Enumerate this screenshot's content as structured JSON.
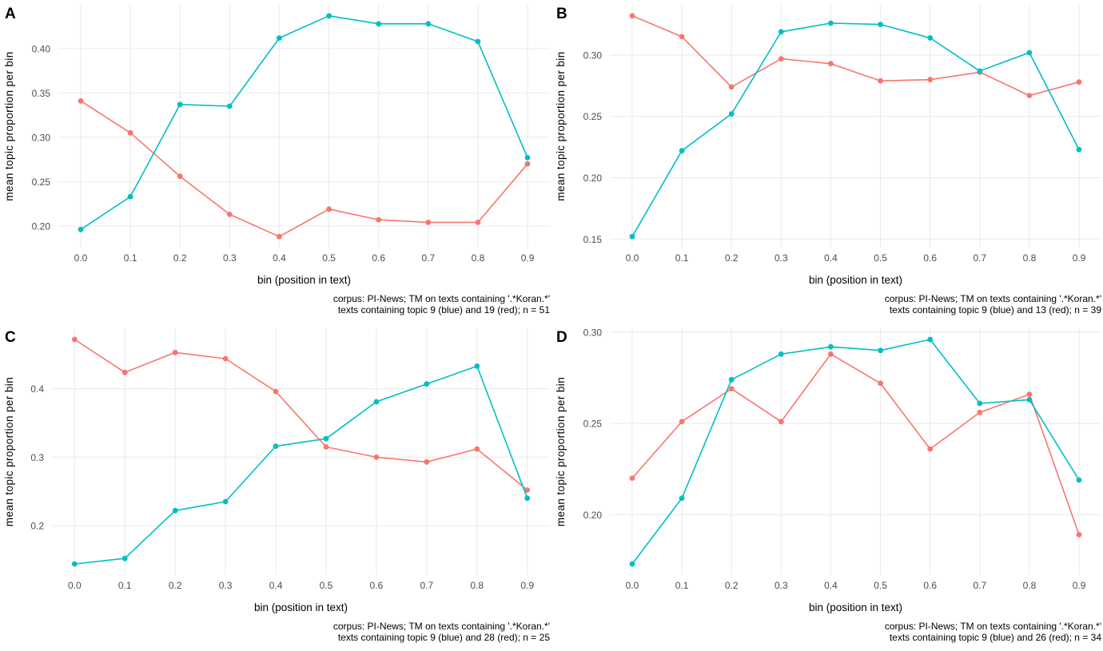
{
  "figure": {
    "background": "#FFFFFF",
    "grid_color": "#EBEBEB",
    "tick_label_color": "#4D4D4D",
    "text_color": "#000000",
    "series_colors": {
      "blue": "#00BFC4",
      "red": "#F8766D"
    }
  },
  "chart_data": [
    {
      "type": "line",
      "panel": "A",
      "xlabel": "bin (position in text)",
      "ylabel": "mean topic proportion per bin",
      "x": [
        0.0,
        0.1,
        0.2,
        0.3,
        0.4,
        0.5,
        0.6,
        0.7,
        0.8,
        0.9
      ],
      "xtick_labels": [
        "0.0",
        "0.1",
        "0.2",
        "0.3",
        "0.4",
        "0.5",
        "0.6",
        "0.7",
        "0.8",
        "0.9"
      ],
      "yticks": [
        0.2,
        0.25,
        0.3,
        0.35,
        0.4
      ],
      "ytick_labels": [
        "0.20",
        "0.25",
        "0.30",
        "0.35",
        "0.40"
      ],
      "grid": "major",
      "legend": "none",
      "series": [
        {
          "name": "topic 9 (blue)",
          "color": "#00BFC4",
          "values": [
            0.196,
            0.233,
            0.337,
            0.335,
            0.412,
            0.437,
            0.428,
            0.428,
            0.408,
            0.277
          ]
        },
        {
          "name": "topic 19 (red)",
          "color": "#F8766D",
          "values": [
            0.341,
            0.305,
            0.256,
            0.213,
            0.188,
            0.219,
            0.207,
            0.204,
            0.204,
            0.27
          ]
        }
      ],
      "caption_line1": "corpus: PI-News; TM on texts containing '.*Koran.*'",
      "caption_line2": "texts containing topic 9 (blue) and 19 (red); n = 51"
    },
    {
      "type": "line",
      "panel": "B",
      "xlabel": "bin (position in text)",
      "ylabel": "mean topic proportion per bin",
      "x": [
        0.0,
        0.1,
        0.2,
        0.3,
        0.4,
        0.5,
        0.6,
        0.7,
        0.8,
        0.9
      ],
      "xtick_labels": [
        "0.0",
        "0.1",
        "0.2",
        "0.3",
        "0.4",
        "0.5",
        "0.6",
        "0.7",
        "0.8",
        "0.9"
      ],
      "yticks": [
        0.15,
        0.2,
        0.25,
        0.3
      ],
      "ytick_labels": [
        "0.15",
        "0.20",
        "0.25",
        "0.30"
      ],
      "grid": "major",
      "legend": "none",
      "series": [
        {
          "name": "topic 9 (blue)",
          "color": "#00BFC4",
          "values": [
            0.152,
            0.222,
            0.252,
            0.319,
            0.326,
            0.325,
            0.314,
            0.287,
            0.302,
            0.223
          ]
        },
        {
          "name": "topic 13 (red)",
          "color": "#F8766D",
          "values": [
            0.332,
            0.315,
            0.274,
            0.297,
            0.293,
            0.279,
            0.28,
            0.286,
            0.267,
            0.278
          ]
        }
      ],
      "caption_line1": "corpus: PI-News; TM on texts containing '.*Koran.*'",
      "caption_line2": "texts containing topic 9 (blue) and 13 (red); n = 39"
    },
    {
      "type": "line",
      "panel": "C",
      "xlabel": "bin (position in text)",
      "ylabel": "mean topic proportion per bin",
      "x": [
        0.0,
        0.1,
        0.2,
        0.3,
        0.4,
        0.5,
        0.6,
        0.7,
        0.8,
        0.9
      ],
      "xtick_labels": [
        "0.0",
        "0.1",
        "0.2",
        "0.3",
        "0.4",
        "0.5",
        "0.6",
        "0.7",
        "0.8",
        "0.9"
      ],
      "yticks": [
        0.2,
        0.3,
        0.4
      ],
      "ytick_labels": [
        "0.2",
        "0.3",
        "0.4"
      ],
      "grid": "major",
      "legend": "none",
      "series": [
        {
          "name": "topic 9 (blue)",
          "color": "#00BFC4",
          "values": [
            0.144,
            0.152,
            0.222,
            0.235,
            0.316,
            0.327,
            0.381,
            0.407,
            0.433,
            0.24
          ]
        },
        {
          "name": "topic 28 (red)",
          "color": "#F8766D",
          "values": [
            0.472,
            0.424,
            0.453,
            0.444,
            0.396,
            0.315,
            0.3,
            0.293,
            0.312,
            0.252
          ]
        }
      ],
      "caption_line1": "corpus: PI-News; TM on texts containing '.*Koran.*'",
      "caption_line2": "texts containing topic 9 (blue) and 28 (red); n = 25"
    },
    {
      "type": "line",
      "panel": "D",
      "xlabel": "bin (position in text)",
      "ylabel": "mean topic proportion per bin",
      "x": [
        0.0,
        0.1,
        0.2,
        0.3,
        0.4,
        0.5,
        0.6,
        0.7,
        0.8,
        0.9
      ],
      "xtick_labels": [
        "0.0",
        "0.1",
        "0.2",
        "0.3",
        "0.4",
        "0.5",
        "0.6",
        "0.7",
        "0.8",
        "0.9"
      ],
      "yticks": [
        0.2,
        0.25,
        0.3
      ],
      "ytick_labels": [
        "0.20",
        "0.25",
        "0.30"
      ],
      "grid": "major",
      "legend": "none",
      "series": [
        {
          "name": "topic 9 (blue)",
          "color": "#00BFC4",
          "values": [
            0.173,
            0.209,
            0.274,
            0.288,
            0.292,
            0.29,
            0.296,
            0.261,
            0.263,
            0.219
          ]
        },
        {
          "name": "topic 26 (red)",
          "color": "#F8766D",
          "values": [
            0.22,
            0.251,
            0.269,
            0.251,
            0.288,
            0.272,
            0.236,
            0.256,
            0.266,
            0.189
          ]
        }
      ],
      "caption_line1": "corpus: PI-News; TM on texts containing '.*Koran.*'",
      "caption_line2": "texts containing topic 9 (blue) and 26 (red); n = 34"
    }
  ]
}
